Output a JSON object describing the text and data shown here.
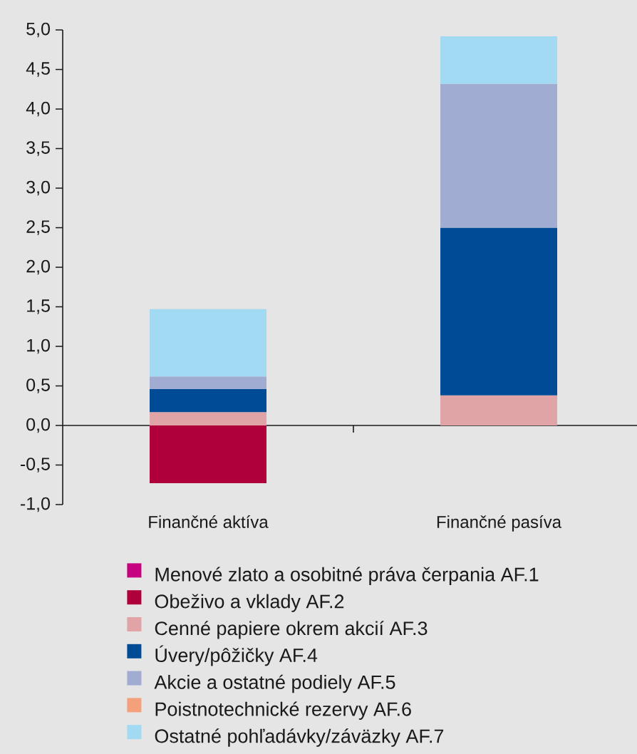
{
  "chart_data": {
    "type": "bar",
    "stacked": true,
    "categories": [
      "Finančné aktíva",
      "Finančné pasíva"
    ],
    "series": [
      {
        "name": "Menové zlato a osobitné práva čerpania AF.1",
        "color": "#c6007e",
        "values": [
          0,
          0
        ]
      },
      {
        "name": "Obeživo a vklady AF.2",
        "color": "#b0003c",
        "values": [
          -0.73,
          0
        ]
      },
      {
        "name": "Cenné papiere okrem akcií AF.3",
        "color": "#e0a4a6",
        "values": [
          0.17,
          0.38
        ]
      },
      {
        "name": "Úvery/pôžičky AF.4",
        "color": "#004b95",
        "values": [
          0.29,
          2.12
        ]
      },
      {
        "name": "Akcie a ostatné podiely AF.5",
        "color": "#a0acd2",
        "values": [
          0.16,
          1.82
        ]
      },
      {
        "name": "Poistnotechnické rezervy AF.6",
        "color": "#f4a07b",
        "values": [
          0,
          0
        ]
      },
      {
        "name": "Ostatné pohľadávky/záväzky AF.7",
        "color": "#a3daf3",
        "values": [
          0.85,
          0.6
        ]
      }
    ],
    "ylim": [
      -1,
      5
    ],
    "yticks": [
      {
        "value": -1,
        "label": "-1,0"
      },
      {
        "value": -0.5,
        "label": "-0,5"
      },
      {
        "value": 0,
        "label": "0,0"
      },
      {
        "value": 0.5,
        "label": "0,5"
      },
      {
        "value": 1,
        "label": "1,0"
      },
      {
        "value": 1.5,
        "label": "1,5"
      },
      {
        "value": 2,
        "label": "2,0"
      },
      {
        "value": 2.5,
        "label": "2,5"
      },
      {
        "value": 3,
        "label": "3,0"
      },
      {
        "value": 3.5,
        "label": "3,5"
      },
      {
        "value": 4,
        "label": "4,0"
      },
      {
        "value": 4.5,
        "label": "4,5"
      },
      {
        "value": 5,
        "label": "5,0"
      }
    ],
    "legend": "bottom"
  }
}
